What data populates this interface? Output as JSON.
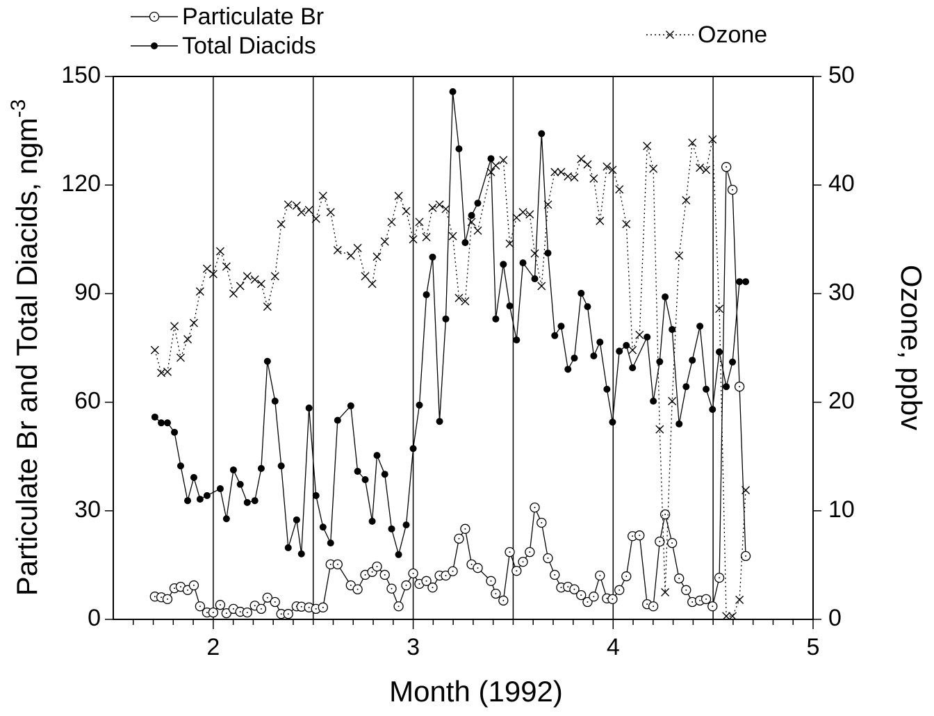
{
  "chart_data": {
    "type": "line",
    "xlabel": "Month (1992)",
    "ylabel": {
      "text": "Particulate Br and Total Diacids, ngm",
      "sup": "-3"
    },
    "y2label": "Ozone, ppbv",
    "xlim": [
      1.5,
      5
    ],
    "xticks": [
      2,
      3,
      4,
      5
    ],
    "xminor": [
      1.6,
      1.7,
      1.8,
      1.9,
      2.1,
      2.2,
      2.3,
      2.4,
      2.5,
      2.6,
      2.7,
      2.8,
      2.9,
      3.1,
      3.2,
      3.3,
      3.4,
      3.5,
      3.6,
      3.7,
      3.8,
      3.9,
      4.1,
      4.2,
      4.3,
      4.4,
      4.5,
      4.6,
      4.7,
      4.8,
      4.9
    ],
    "vlines": [
      2,
      2.5,
      3,
      3.5,
      4,
      4.5
    ],
    "ylim": [
      0,
      150
    ],
    "yticks": [
      0,
      30,
      60,
      90,
      120,
      150
    ],
    "y2lim": [
      0,
      50
    ],
    "y2ticks": [
      0,
      10,
      20,
      30,
      40,
      50
    ],
    "series": [
      {
        "name": "Particulate Br",
        "color": "#000000",
        "marker": "open-circle",
        "dash": "solid",
        "x": [
          1.708,
          1.74,
          1.771,
          1.806,
          1.837,
          1.872,
          1.903,
          1.934,
          1.969,
          2.0,
          2.035,
          2.066,
          2.101,
          2.135,
          2.17,
          2.208,
          2.24,
          2.271,
          2.309,
          2.34,
          2.375,
          2.417,
          2.441,
          2.479,
          2.514,
          2.549,
          2.587,
          2.622,
          2.688,
          2.722,
          2.76,
          2.795,
          2.819,
          2.858,
          2.892,
          2.927,
          2.965,
          3.0,
          3.031,
          3.066,
          3.097,
          3.132,
          3.163,
          3.198,
          3.229,
          3.26,
          3.292,
          3.323,
          3.389,
          3.413,
          3.451,
          3.483,
          3.517,
          3.549,
          3.583,
          3.608,
          3.642,
          3.674,
          3.708,
          3.74,
          3.774,
          3.806,
          3.84,
          3.872,
          3.903,
          3.934,
          3.969,
          3.997,
          4.031,
          4.066,
          4.097,
          4.132,
          4.17,
          4.201,
          4.233,
          4.26,
          4.295,
          4.33,
          4.365,
          4.396,
          4.434,
          4.465,
          4.497,
          4.531,
          4.566,
          4.597,
          4.632,
          4.663
        ],
        "values": [
          6.3,
          6.1,
          5.6,
          8.6,
          9.0,
          8.1,
          9.4,
          3.6,
          1.9,
          1.9,
          4.0,
          1.7,
          2.9,
          2.1,
          1.9,
          3.8,
          2.9,
          6.0,
          4.8,
          1.5,
          1.5,
          3.6,
          3.5,
          3.3,
          2.9,
          3.3,
          15.2,
          15.2,
          9.4,
          8.3,
          12.3,
          13.1,
          14.6,
          12.3,
          8.5,
          3.6,
          9.4,
          12.7,
          9.8,
          10.6,
          8.8,
          12.1,
          12.1,
          13.3,
          22.3,
          25.0,
          15.2,
          14.2,
          10.6,
          7.1,
          5.2,
          18.6,
          13.4,
          15.9,
          18.6,
          30.9,
          26.7,
          16.9,
          12.3,
          8.8,
          9.0,
          8.3,
          6.7,
          4.8,
          6.3,
          12.1,
          5.8,
          5.6,
          8.1,
          11.9,
          23.0,
          23.2,
          4.2,
          3.6,
          21.5,
          29.0,
          21.1,
          11.3,
          8.1,
          4.8,
          5.2,
          5.6,
          3.6,
          11.5,
          125.0,
          118.7,
          64.3,
          17.5
        ]
      },
      {
        "name": "Total Diacids",
        "color": "#000000",
        "marker": "filled-circle",
        "dash": "solid",
        "x": [
          1.708,
          1.74,
          1.771,
          1.806,
          1.837,
          1.872,
          1.903,
          1.934,
          1.969,
          2.035,
          2.066,
          2.101,
          2.135,
          2.17,
          2.208,
          2.24,
          2.271,
          2.309,
          2.34,
          2.375,
          2.417,
          2.441,
          2.479,
          2.514,
          2.549,
          2.587,
          2.622,
          2.688,
          2.722,
          2.76,
          2.795,
          2.819,
          2.858,
          2.892,
          2.927,
          2.965,
          3.0,
          3.031,
          3.066,
          3.097,
          3.132,
          3.163,
          3.198,
          3.229,
          3.26,
          3.292,
          3.323,
          3.389,
          3.413,
          3.451,
          3.483,
          3.517,
          3.549,
          3.608,
          3.642,
          3.674,
          3.708,
          3.74,
          3.774,
          3.806,
          3.84,
          3.872,
          3.903,
          3.934,
          3.969,
          3.997,
          4.031,
          4.066,
          4.097,
          4.17,
          4.201,
          4.233,
          4.26,
          4.295,
          4.33,
          4.365,
          4.396,
          4.434,
          4.465,
          4.497,
          4.531,
          4.566,
          4.597,
          4.632,
          4.663
        ],
        "values": [
          55.9,
          54.3,
          54.3,
          51.7,
          42.4,
          32.8,
          39.2,
          33.2,
          34.2,
          36.1,
          27.8,
          41.3,
          37.3,
          32.3,
          32.8,
          41.7,
          71.3,
          60.3,
          42.4,
          19.8,
          27.5,
          18.1,
          58.4,
          34.2,
          25.5,
          21.1,
          55.0,
          59.0,
          40.9,
          38.6,
          27.1,
          45.3,
          40.1,
          25.0,
          17.9,
          26.1,
          47.2,
          59.2,
          89.7,
          100.1,
          54.7,
          83.0,
          145.8,
          130.0,
          104.1,
          111.6,
          115.0,
          127.3,
          83.0,
          98.1,
          86.6,
          77.2,
          98.5,
          94.1,
          134.2,
          101.2,
          78.4,
          81.0,
          69.1,
          72.2,
          90.1,
          86.4,
          72.8,
          76.6,
          63.6,
          54.5,
          74.1,
          75.7,
          69.5,
          78.0,
          60.3,
          71.2,
          89.1,
          80.1,
          54.0,
          64.3,
          71.6,
          81.0,
          63.6,
          58.0,
          73.9,
          64.3,
          71.1,
          93.3,
          93.3
        ]
      },
      {
        "name": "Ozone",
        "color": "#000000",
        "marker": "cross",
        "dash": "dotted",
        "axis": "y2",
        "x": [
          1.708,
          1.74,
          1.771,
          1.806,
          1.837,
          1.872,
          1.903,
          1.934,
          1.969,
          2.0,
          2.035,
          2.066,
          2.101,
          2.135,
          2.17,
          2.208,
          2.24,
          2.271,
          2.309,
          2.34,
          2.375,
          2.417,
          2.441,
          2.479,
          2.514,
          2.549,
          2.587,
          2.622,
          2.688,
          2.722,
          2.76,
          2.795,
          2.819,
          2.858,
          2.892,
          2.927,
          2.965,
          3.0,
          3.031,
          3.066,
          3.097,
          3.132,
          3.163,
          3.198,
          3.229,
          3.26,
          3.292,
          3.323,
          3.389,
          3.413,
          3.451,
          3.483,
          3.517,
          3.549,
          3.583,
          3.608,
          3.642,
          3.674,
          3.708,
          3.74,
          3.774,
          3.806,
          3.84,
          3.872,
          3.903,
          3.934,
          3.969,
          3.997,
          4.031,
          4.066,
          4.097,
          4.132,
          4.17,
          4.201,
          4.233,
          4.26,
          4.295,
          4.33,
          4.365,
          4.396,
          4.434,
          4.465,
          4.497,
          4.531,
          4.566,
          4.597,
          4.632,
          4.663
        ],
        "values": [
          24.8,
          22.7,
          22.8,
          27.0,
          24.1,
          25.8,
          27.3,
          30.2,
          32.3,
          31.8,
          33.9,
          32.5,
          30.0,
          30.7,
          31.6,
          31.3,
          30.9,
          28.8,
          31.6,
          36.4,
          38.2,
          38.1,
          37.5,
          37.7,
          36.9,
          39.0,
          37.5,
          34.0,
          33.5,
          34.2,
          31.6,
          30.9,
          33.4,
          34.8,
          36.6,
          39.0,
          37.6,
          35.0,
          36.6,
          35.2,
          37.9,
          38.2,
          37.8,
          35.3,
          29.6,
          29.3,
          36.6,
          35.8,
          41.2,
          41.8,
          42.3,
          34.6,
          37.0,
          37.5,
          37.3,
          33.7,
          30.7,
          38.2,
          41.2,
          41.2,
          40.8,
          40.7,
          42.4,
          41.9,
          40.6,
          36.7,
          41.7,
          41.4,
          39.6,
          36.4,
          24.8,
          26.2,
          43.6,
          41.5,
          17.5,
          2.5,
          20.1,
          33.5,
          38.6,
          43.9,
          41.6,
          41.4,
          44.2,
          28.6,
          0.3,
          0.3,
          1.8,
          11.9
        ]
      }
    ]
  }
}
